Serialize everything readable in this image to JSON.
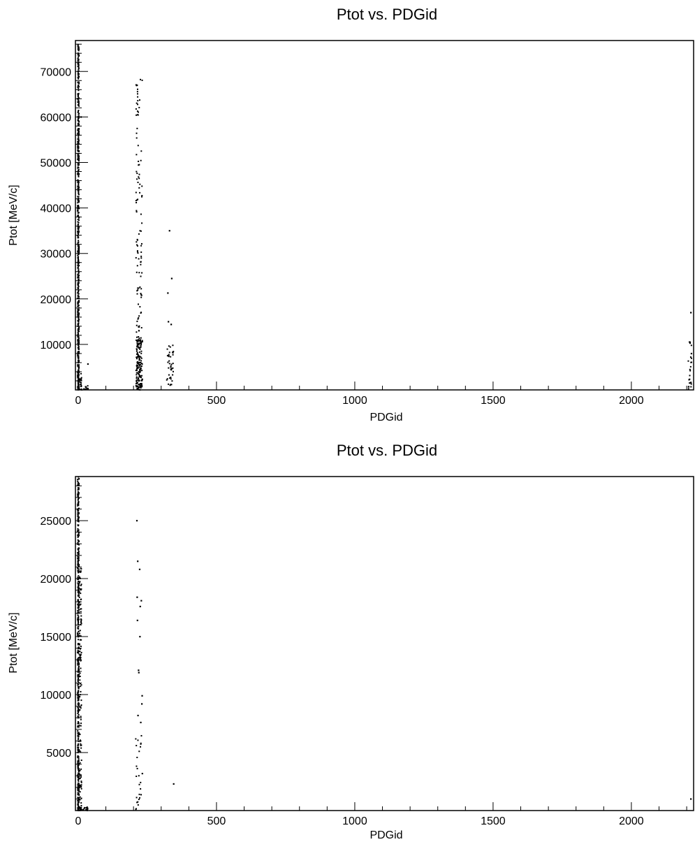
{
  "chart_data": [
    {
      "type": "scatter",
      "title": "Ptot vs. PDGid",
      "xlabel": "PDGid",
      "ylabel": "Ptot [MeV/c]",
      "xlim": [
        -10,
        2225
      ],
      "ylim": [
        0,
        76800
      ],
      "xticks": [
        0,
        500,
        1000,
        1500,
        2000
      ],
      "xtick_labels": [
        "0",
        "500",
        "1000",
        "1500",
        "2000"
      ],
      "yticks": [
        10000,
        20000,
        30000,
        40000,
        50000,
        60000,
        70000
      ],
      "ytick_labels": [
        "10000",
        "20000",
        "30000",
        "40000",
        "50000",
        "60000",
        "70000"
      ],
      "grid": false,
      "legend": "none",
      "color": "#000000",
      "clusters": [
        {
          "x": [
            -2,
            3
          ],
          "ymin": 0,
          "ymax": 76000,
          "n": 620
        },
        {
          "x": [
            4,
            14
          ],
          "ymin": 0,
          "ymax": 4000,
          "n": 20
        },
        {
          "x": [
            20,
            36
          ],
          "ymin": 0,
          "ymax": 1000,
          "n": 12
        },
        {
          "x": [
            209,
            232
          ],
          "ymin": 0,
          "ymax": 11000,
          "n": 160
        },
        {
          "x": [
            209,
            232
          ],
          "ymin": 11000,
          "ymax": 69000,
          "n": 110
        },
        {
          "x": [
            320,
            345
          ],
          "ymin": 0,
          "ymax": 10000,
          "n": 40
        },
        {
          "x": [
            2205,
            2218
          ],
          "ymin": 0,
          "ymax": 11000,
          "n": 22
        }
      ],
      "outliers": [
        {
          "x": 330,
          "y": 35000
        },
        {
          "x": 338,
          "y": 24500
        },
        {
          "x": 324,
          "y": 21300
        },
        {
          "x": 326,
          "y": 15000
        },
        {
          "x": 336,
          "y": 14400
        },
        {
          "x": 2215,
          "y": 17000
        },
        {
          "x": 2212,
          "y": 10500
        },
        {
          "x": 2217,
          "y": 8000
        },
        {
          "x": 35,
          "y": 5700
        },
        {
          "x": 10,
          "y": 60000
        }
      ]
    },
    {
      "type": "scatter",
      "title": "Ptot vs. PDGid",
      "xlabel": "PDGid",
      "ylabel": "Ptot [MeV/c]",
      "xlim": [
        -10,
        2225
      ],
      "ylim": [
        0,
        28800
      ],
      "xticks": [
        0,
        500,
        1000,
        1500,
        2000
      ],
      "xtick_labels": [
        "0",
        "500",
        "1000",
        "1500",
        "2000"
      ],
      "yticks": [
        5000,
        10000,
        15000,
        20000,
        25000
      ],
      "ytick_labels": [
        "5000",
        "10000",
        "15000",
        "20000",
        "25000"
      ],
      "grid": false,
      "legend": "none",
      "color": "#000000",
      "clusters": [
        {
          "x": [
            -2,
            3
          ],
          "ymin": 0,
          "ymax": 28800,
          "n": 520
        },
        {
          "x": [
            4,
            12
          ],
          "ymin": 0,
          "ymax": 21000,
          "n": 120
        },
        {
          "x": [
            5,
            35
          ],
          "ymin": 0,
          "ymax": 300,
          "n": 22
        },
        {
          "x": [
            208,
            232
          ],
          "ymin": 0,
          "ymax": 6500,
          "n": 28
        }
      ],
      "outliers": [
        {
          "x": 212,
          "y": 25000
        },
        {
          "x": 215,
          "y": 21500
        },
        {
          "x": 222,
          "y": 20800
        },
        {
          "x": 213,
          "y": 18400
        },
        {
          "x": 228,
          "y": 18100
        },
        {
          "x": 224,
          "y": 17600
        },
        {
          "x": 214,
          "y": 16400
        },
        {
          "x": 223,
          "y": 15000
        },
        {
          "x": 218,
          "y": 12100
        },
        {
          "x": 219,
          "y": 11900
        },
        {
          "x": 231,
          "y": 9900
        },
        {
          "x": 230,
          "y": 9200
        },
        {
          "x": 216,
          "y": 8200
        },
        {
          "x": 226,
          "y": 7600
        },
        {
          "x": 345,
          "y": 2300
        },
        {
          "x": 2215,
          "y": 1000
        }
      ]
    }
  ]
}
